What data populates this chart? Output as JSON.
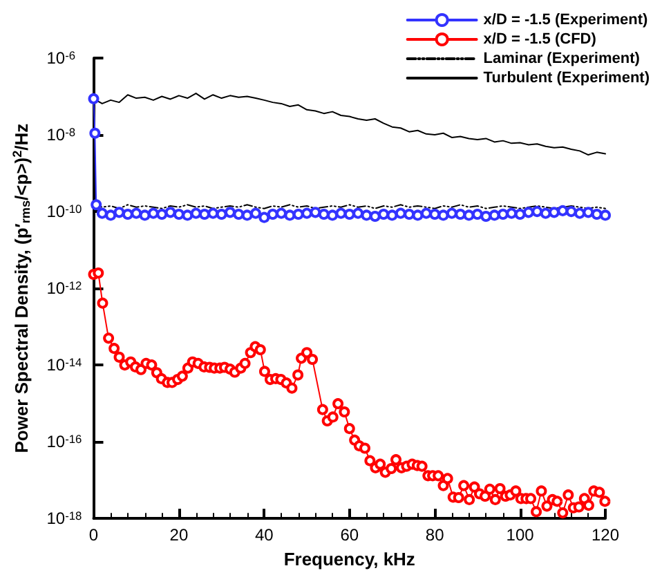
{
  "chart_data": {
    "type": "line",
    "xlabel": "Frequency, kHz",
    "ylabel": "Power Spectral Density, (p′$_{rms}$/<p>)$^{2}$/Hz",
    "log": "y",
    "grid": false,
    "legend": "top right",
    "xlim": [
      0,
      120
    ],
    "xticks": [
      0,
      20,
      40,
      60,
      80,
      100,
      120
    ],
    "ylim": [
      1e-18,
      1e-06
    ],
    "yticks": [
      {
        "value": 1e-18,
        "label": "10$^{-18}$"
      },
      {
        "value": 1e-16,
        "label": "10$^{-16}$"
      },
      {
        "value": 1e-14,
        "label": "10$^{-14}$"
      },
      {
        "value": 1e-12,
        "label": "10$^{-12}$"
      },
      {
        "value": 1e-10,
        "label": "10$^{-10}$"
      },
      {
        "value": 1e-08,
        "label": "10$^{-8}$"
      },
      {
        "value": 1e-06,
        "label": "10$^{-6}$"
      }
    ],
    "series": [
      {
        "name": "x/D = -1.5 (Experiment)",
        "color": "#3333ff",
        "marker": "circle",
        "line_style": "solid",
        "x": [
          0,
          0.3,
          0.6,
          2,
          4,
          6,
          8,
          10,
          12,
          14,
          16,
          18,
          20,
          22,
          24,
          26,
          28,
          30,
          32,
          34,
          36,
          38,
          40,
          42,
          44,
          46,
          48,
          50,
          52,
          54,
          56,
          58,
          60,
          62,
          64,
          66,
          68,
          70,
          72,
          74,
          76,
          78,
          80,
          82,
          84,
          86,
          88,
          90,
          92,
          94,
          96,
          98,
          100,
          102,
          104,
          106,
          108,
          110,
          112,
          114,
          116,
          118,
          120
        ],
        "values": [
          8.7e-08,
          1.1e-08,
          1.5e-10,
          9e-11,
          8e-11,
          9.5e-11,
          8.5e-11,
          9e-11,
          8e-11,
          9e-11,
          8.5e-11,
          9.5e-11,
          8.5e-11,
          8e-11,
          9e-11,
          8.5e-11,
          9e-11,
          8.5e-11,
          9.5e-11,
          8.5e-11,
          8e-11,
          9e-11,
          7e-11,
          8.5e-11,
          9e-11,
          8e-11,
          8.5e-11,
          9e-11,
          9.5e-11,
          8.5e-11,
          8e-11,
          9e-11,
          8.5e-11,
          9e-11,
          8e-11,
          7.5e-11,
          8.5e-11,
          8e-11,
          9e-11,
          8.5e-11,
          8e-11,
          9e-11,
          8.5e-11,
          8e-11,
          9e-11,
          8.5e-11,
          8e-11,
          8.5e-11,
          7.5e-11,
          8e-11,
          8.5e-11,
          9e-11,
          8.5e-11,
          9.5e-11,
          1e-10,
          9e-11,
          9.5e-11,
          1.05e-10,
          1e-10,
          9e-11,
          9.5e-11,
          8.5e-11,
          8e-11
        ]
      },
      {
        "name": "x/D = -1.5 (CFD)",
        "color": "#ff0000",
        "marker": "circle",
        "line_style": "solid",
        "x": [
          0,
          1.1,
          2.1,
          3.5,
          4.8,
          6.0,
          7.3,
          8.7,
          9.8,
          11.1,
          12.3,
          13.6,
          14.8,
          15.9,
          17.3,
          18.4,
          19.7,
          20.8,
          22.1,
          23.2,
          24.5,
          25.9,
          27.2,
          28.3,
          29.6,
          30.7,
          32.0,
          33.1,
          34.5,
          35.5,
          36.8,
          37.9,
          39.1,
          40.1,
          41.4,
          42.7,
          43.9,
          45.2,
          46.5,
          47.9,
          48.7,
          50.0,
          51.3,
          53.7,
          54.8,
          56.1,
          57.3,
          58.8,
          60.0,
          61.2,
          62.3,
          63.6,
          64.8,
          66.1,
          67.2,
          68.4,
          69.8,
          70.9,
          72.2,
          73.4,
          74.7,
          75.9,
          77.0,
          78.4,
          79.5,
          80.8,
          82.0,
          83.0,
          84.3,
          85.6,
          86.8,
          88.1,
          89.3,
          90.5,
          91.8,
          92.9,
          94.2,
          95.3,
          96.6,
          97.7,
          99.0,
          100.2,
          101.4,
          102.5,
          103.8,
          105.0,
          106.3,
          107.6,
          108.7,
          110.0,
          111.3,
          112.5,
          113.8,
          115.1,
          116.1,
          117.3,
          118.6,
          119.9
        ],
        "values": [
          2.3e-12,
          2.5e-12,
          4.1e-13,
          5e-14,
          2.7e-14,
          1.6e-14,
          1e-14,
          1.2e-14,
          8.9e-15,
          7.6e-15,
          1.1e-14,
          1e-14,
          6.3e-15,
          4.4e-15,
          3.5e-15,
          3.5e-15,
          4.2e-15,
          5.1e-15,
          8.3e-15,
          1.2e-14,
          1.1e-14,
          8.9e-15,
          8.7e-15,
          8.3e-15,
          8.3e-15,
          8.7e-15,
          7.8e-15,
          6.5e-15,
          8.3e-15,
          1.1e-14,
          2.1e-14,
          3e-14,
          2.5e-14,
          6.8e-15,
          4.2e-15,
          4.4e-15,
          4.2e-15,
          3.4e-15,
          2.5e-15,
          5.5e-15,
          1.5e-14,
          2.1e-14,
          1.4e-14,
          6.9e-16,
          3.5e-16,
          4.4e-16,
          9.8e-16,
          6e-16,
          2.2e-16,
          1.1e-16,
          7.8e-17,
          6.8e-17,
          3.2e-17,
          2.1e-17,
          2.6e-17,
          1.6e-17,
          2e-17,
          3.4e-17,
          2.1e-17,
          2.3e-17,
          2.6e-17,
          2.4e-17,
          2.3e-17,
          1.3e-17,
          1.3e-17,
          1.3e-17,
          7.2e-18,
          1.1e-17,
          3.6e-18,
          3.5e-18,
          7.2e-18,
          3.1e-18,
          6.6e-18,
          4.4e-18,
          3.8e-18,
          5.8e-18,
          3.1e-18,
          6e-18,
          3.8e-18,
          4.1e-18,
          5.2e-18,
          3.3e-18,
          3.3e-18,
          3.3e-18,
          1.5e-18,
          5.2e-18,
          2.1e-18,
          3.1e-18,
          2.8e-18,
          1.4e-18,
          4.1e-18,
          1.9e-18,
          2e-18,
          3.3e-18,
          2.2e-18,
          5.2e-18,
          4.8e-18,
          2.8e-18
        ]
      },
      {
        "name": "Laminar (Experiment)",
        "color": "#000000",
        "marker": "none",
        "line_style": "dashed",
        "x": [
          0,
          2,
          4,
          6,
          8,
          10,
          12,
          14,
          16,
          18,
          20,
          22,
          24,
          26,
          28,
          30,
          32,
          34,
          36,
          38,
          40,
          42,
          44,
          46,
          48,
          50,
          52,
          54,
          56,
          58,
          60,
          62,
          64,
          66,
          68,
          70,
          72,
          74,
          76,
          78,
          80,
          82,
          84,
          86,
          88,
          90,
          92,
          94,
          96,
          98,
          100,
          102,
          104,
          106,
          108,
          110,
          112,
          114,
          116,
          118,
          120
        ],
        "values": [
          1.5e-10,
          1.3e-10,
          1.4e-10,
          1.2e-10,
          1.5e-10,
          1.3e-10,
          1.4e-10,
          1.3e-10,
          1.2e-10,
          1.4e-10,
          1.3e-10,
          1.5e-10,
          1.3e-10,
          1.4e-10,
          1.2e-10,
          1.3e-10,
          1.4e-10,
          1.3e-10,
          1.5e-10,
          1.3e-10,
          1.2e-10,
          1.4e-10,
          1.3e-10,
          1.5e-10,
          1.3e-10,
          1.4e-10,
          1.2e-10,
          1.3e-10,
          1.4e-10,
          1.3e-10,
          1.5e-10,
          1.3e-10,
          1.4e-10,
          1.2e-10,
          1.4e-10,
          1.3e-10,
          1.5e-10,
          1.3e-10,
          1.4e-10,
          1.3e-10,
          1.2e-10,
          1.4e-10,
          1.3e-10,
          1.5e-10,
          1.3e-10,
          1.4e-10,
          1.2e-10,
          1.3e-10,
          1.4e-10,
          1.3e-10,
          1.2e-10,
          1.3e-10,
          1.4e-10,
          1.3e-10,
          1.2e-10,
          1.3e-10,
          1.4e-10,
          1.3e-10,
          1.2e-10,
          1.3e-10,
          1.2e-10
        ]
      },
      {
        "name": "Turbulent (Experiment)",
        "color": "#000000",
        "marker": "none",
        "line_style": "solid",
        "x": [
          0,
          2,
          4,
          6,
          8,
          10,
          12,
          14,
          16,
          18,
          20,
          22,
          24,
          26,
          28,
          30,
          32,
          34,
          36,
          38,
          40,
          42,
          44,
          46,
          48,
          50,
          52,
          54,
          56,
          58,
          60,
          62,
          64,
          66,
          68,
          70,
          72,
          74,
          76,
          78,
          80,
          82,
          84,
          86,
          88,
          90,
          92,
          94,
          96,
          98,
          100,
          102,
          104,
          106,
          108,
          110,
          112,
          114,
          116,
          118,
          120
        ],
        "values": [
          8.7e-08,
          6.5e-08,
          8e-08,
          7e-08,
          1.1e-07,
          9e-08,
          9.5e-08,
          8e-08,
          1e-07,
          8.5e-08,
          1.05e-07,
          9e-08,
          1.2e-07,
          8.5e-08,
          1.1e-07,
          9e-08,
          1.05e-07,
          9.5e-08,
          1e-07,
          9e-08,
          8e-08,
          7e-08,
          6.5e-08,
          5.5e-08,
          6e-08,
          4.5e-08,
          4.2e-08,
          3.6e-08,
          4e-08,
          3.2e-08,
          3e-08,
          2.6e-08,
          2.4e-08,
          2.6e-08,
          2e-08,
          1.6e-08,
          1.5e-08,
          1.2e-08,
          1.3e-08,
          1.05e-08,
          1e-08,
          1.1e-08,
          8.5e-09,
          9e-09,
          8e-09,
          7.5e-09,
          8e-09,
          6.5e-09,
          7e-09,
          6e-09,
          6.2e-09,
          5.5e-09,
          5.8e-09,
          5e-09,
          4.6e-09,
          4.8e-09,
          4.2e-09,
          3.8e-09,
          3e-09,
          3.5e-09,
          3.2e-09
        ]
      }
    ]
  }
}
